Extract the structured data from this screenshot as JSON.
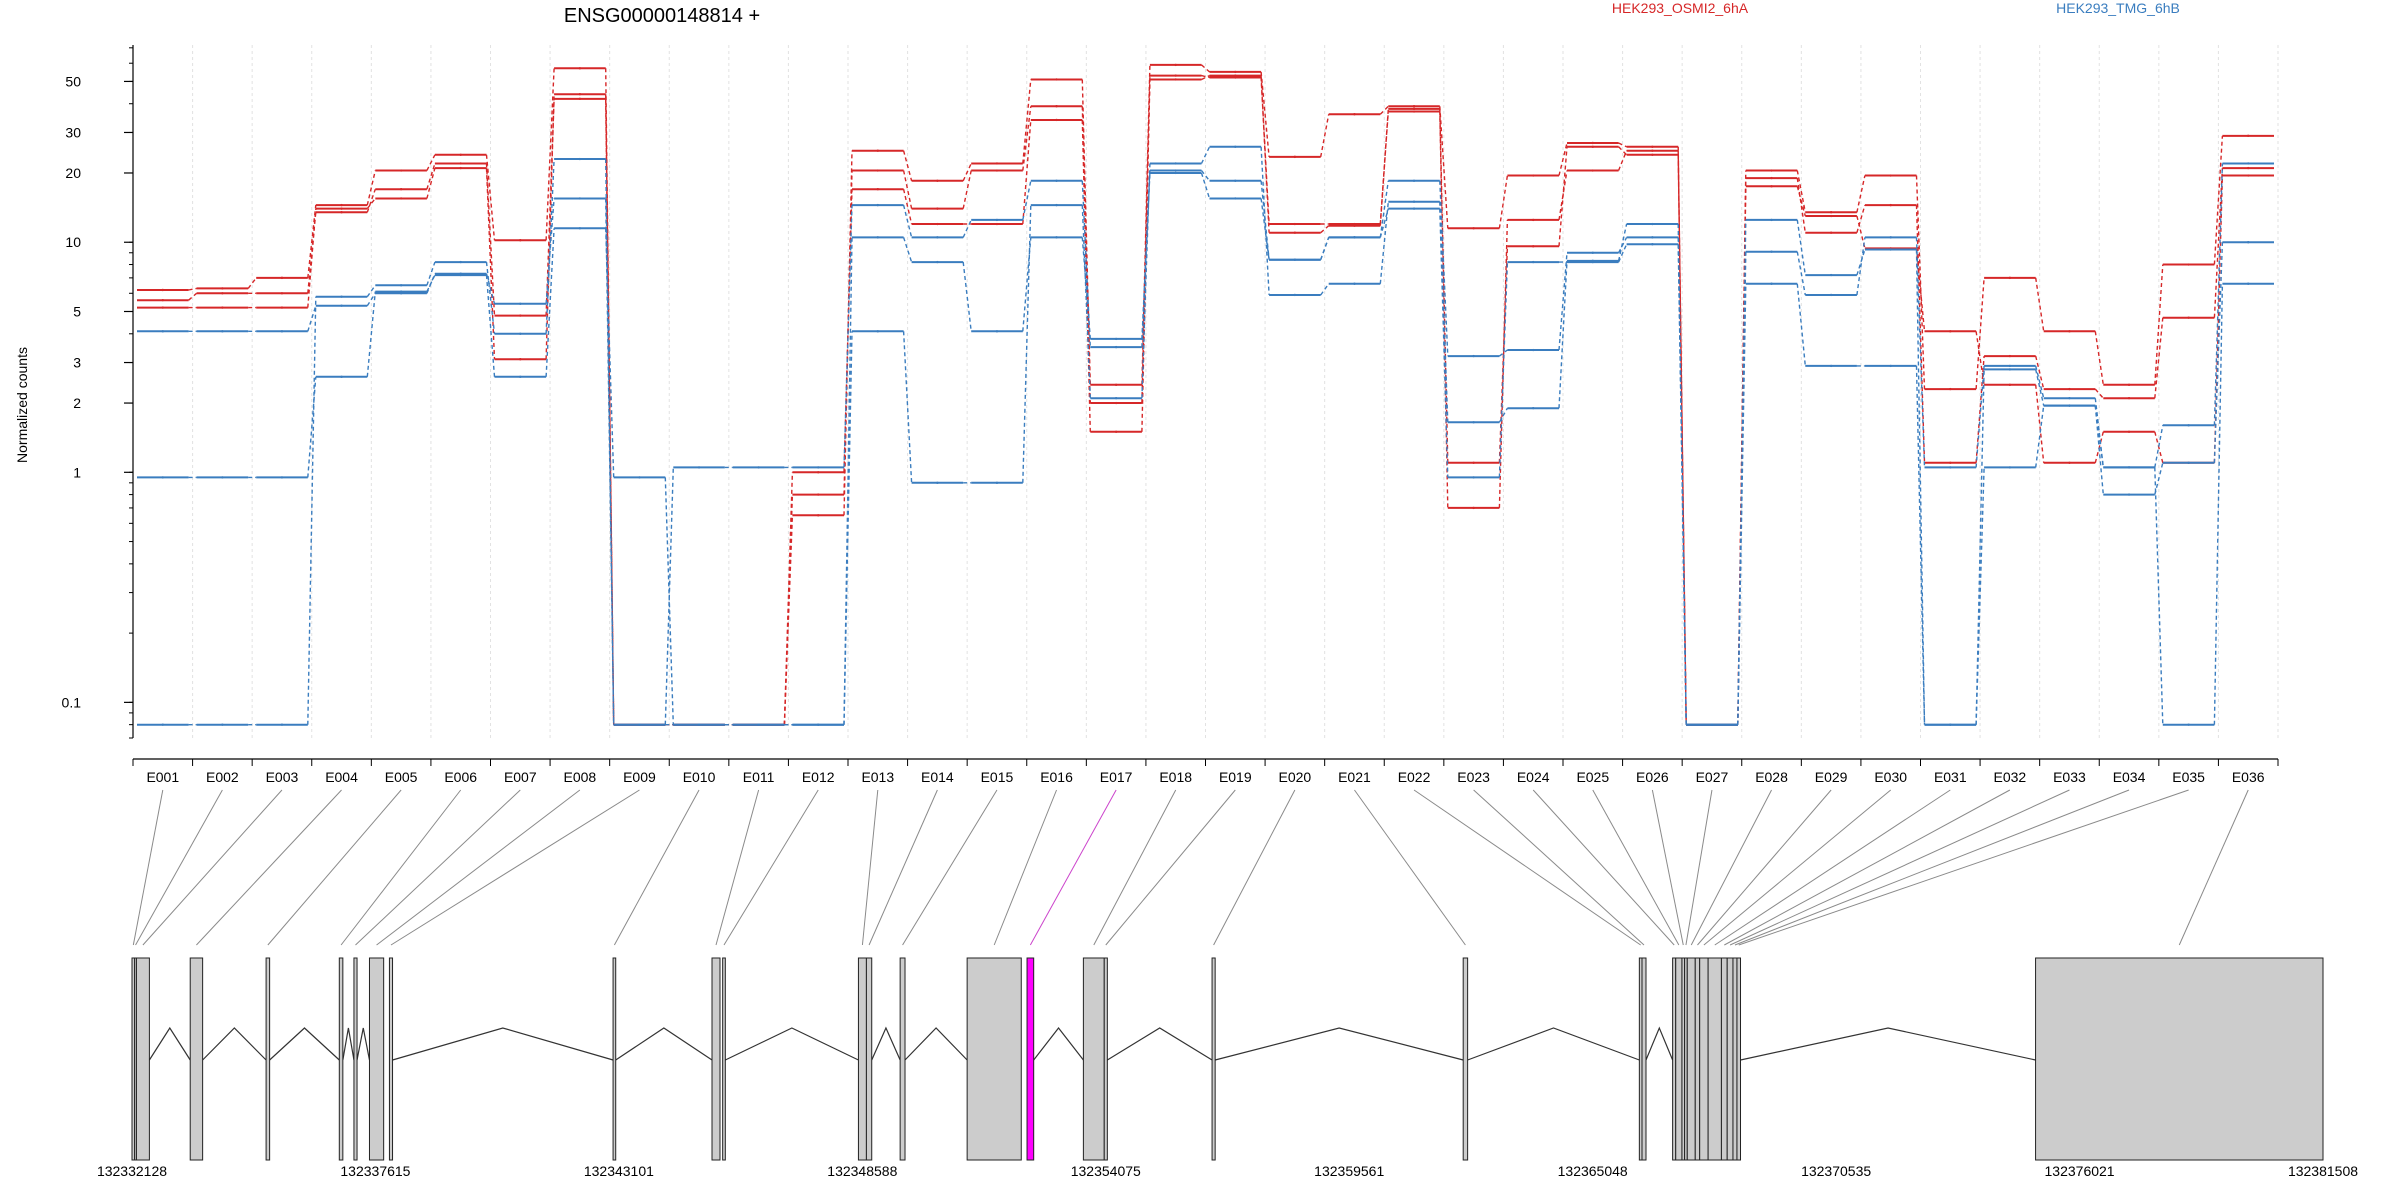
{
  "chart_data": {
    "type": "line",
    "title": "ENSG00000148814 +",
    "xlabel": "",
    "ylabel": "Normalized counts",
    "yscale": "log",
    "ylim": [
      0.07,
      72
    ],
    "y_ticks": [
      {
        "value": 0.1,
        "label": "0.1"
      },
      {
        "value": 1,
        "label": "1"
      },
      {
        "value": 2,
        "label": "2"
      },
      {
        "value": 3,
        "label": "3"
      },
      {
        "value": 5,
        "label": "5"
      },
      {
        "value": 10,
        "label": "10"
      },
      {
        "value": 20,
        "label": "20"
      },
      {
        "value": 30,
        "label": "30"
      },
      {
        "value": 50,
        "label": "50"
      }
    ],
    "grid": "vertical at each exon",
    "legend_position": "top-right",
    "categories": [
      "E001",
      "E002",
      "E003",
      "E004",
      "E005",
      "E006",
      "E007",
      "E008",
      "E009",
      "E010",
      "E011",
      "E012",
      "E013",
      "E014",
      "E015",
      "E016",
      "E017",
      "E018",
      "E019",
      "E020",
      "E021",
      "E022",
      "E023",
      "E024",
      "E025",
      "E026",
      "E027",
      "E028",
      "E029",
      "E030",
      "E031",
      "E032",
      "E033",
      "E034",
      "E035",
      "E036"
    ],
    "highlighted_category": "E017",
    "groups": [
      {
        "name": "HEK293_OSMI2_6hA",
        "color": "#d62728"
      },
      {
        "name": "HEK293_TMG_6hB",
        "color": "#3a7dbf"
      }
    ],
    "series": [
      {
        "group": 0,
        "values": [
          6.2,
          6.3,
          7.0,
          14.5,
          20.5,
          24.0,
          10.2,
          57.0,
          0.08,
          0.08,
          0.08,
          0.65,
          25.0,
          18.5,
          22.0,
          51.0,
          2.4,
          59.0,
          55.0,
          23.5,
          36.0,
          39.0,
          11.5,
          19.5,
          27.0,
          26.0,
          0.08,
          20.5,
          13.5,
          19.5,
          2.3,
          7.0,
          4.1,
          2.4,
          8.0,
          29.0
        ]
      },
      {
        "group": 0,
        "values": [
          5.6,
          6.0,
          6.0,
          13.5,
          17.0,
          22.0,
          4.8,
          42.0,
          0.08,
          0.08,
          0.08,
          0.8,
          20.5,
          14.0,
          20.5,
          39.0,
          2.0,
          53.0,
          52.0,
          12.0,
          12.0,
          37.0,
          0.7,
          12.5,
          20.5,
          25.0,
          0.08,
          19.0,
          11.0,
          14.5,
          1.1,
          3.2,
          2.3,
          2.1,
          4.7,
          21.0
        ]
      },
      {
        "group": 0,
        "values": [
          5.2,
          5.2,
          5.2,
          14.0,
          15.5,
          21.0,
          3.1,
          44.0,
          0.08,
          0.08,
          0.08,
          1.0,
          17.0,
          12.0,
          12.0,
          34.0,
          1.5,
          51.0,
          53.0,
          11.0,
          11.8,
          38.0,
          1.1,
          9.6,
          26.0,
          24.0,
          0.08,
          17.5,
          13.0,
          9.4,
          4.1,
          2.4,
          1.1,
          1.5,
          1.1,
          19.5
        ]
      },
      {
        "group": 1,
        "values": [
          4.1,
          4.1,
          4.1,
          5.3,
          6.0,
          7.3,
          5.4,
          15.5,
          0.08,
          1.05,
          1.05,
          1.05,
          14.5,
          10.5,
          12.5,
          18.5,
          3.5,
          20.5,
          18.5,
          8.4,
          10.5,
          18.5,
          3.2,
          3.4,
          9.0,
          10.5,
          0.08,
          9.1,
          5.9,
          10.5,
          1.05,
          2.9,
          2.1,
          1.05,
          1.6,
          22.0
        ]
      },
      {
        "group": 1,
        "values": [
          0.08,
          0.08,
          0.08,
          5.8,
          6.5,
          8.2,
          4.0,
          23.0,
          0.08,
          0.08,
          0.08,
          0.08,
          4.1,
          0.9,
          0.9,
          14.5,
          2.1,
          22.0,
          26.0,
          5.9,
          6.6,
          15.0,
          1.65,
          1.9,
          8.3,
          12.0,
          0.08,
          6.6,
          2.9,
          2.9,
          0.08,
          1.05,
          1.95,
          1.05,
          0.08,
          6.6
        ]
      },
      {
        "group": 1,
        "values": [
          0.95,
          0.95,
          0.95,
          2.6,
          6.1,
          7.2,
          2.6,
          11.5,
          0.95,
          0.08,
          0.08,
          0.08,
          10.5,
          8.2,
          4.1,
          10.5,
          3.8,
          20.0,
          15.5,
          8.4,
          10.5,
          14.0,
          0.95,
          8.2,
          8.2,
          9.8,
          0.08,
          12.5,
          7.2,
          9.3,
          0.08,
          2.8,
          1.95,
          0.8,
          1.1,
          10.0
        ]
      }
    ],
    "coordinate_labels": [
      "132332128",
      "132337615",
      "132343101",
      "132348588",
      "132354075",
      "132359561",
      "132365048",
      "132370535",
      "132376021",
      "132381508"
    ],
    "genomic_range": [
      132332128,
      132381508
    ],
    "exon_model": [
      {
        "id": "E001",
        "start": 132332128,
        "end": 132332188
      },
      {
        "id": "E002",
        "start": 132332188,
        "end": 132332228
      },
      {
        "id": "E003",
        "start": 132332228,
        "end": 132332520
      },
      {
        "id": "E004",
        "start": 132333440,
        "end": 132333720
      },
      {
        "id": "E005",
        "start": 132335150,
        "end": 132335230
      },
      {
        "id": "E006",
        "start": 132336800,
        "end": 132336880
      },
      {
        "id": "E007",
        "start": 132337130,
        "end": 132337200
      },
      {
        "id": "E008",
        "start": 132337480,
        "end": 132337800
      },
      {
        "id": "E009",
        "start": 132337930,
        "end": 132338000
      },
      {
        "id": "E010",
        "start": 132342970,
        "end": 132343030
      },
      {
        "id": "E011",
        "start": 132345200,
        "end": 132345380
      },
      {
        "id": "E012",
        "start": 132345440,
        "end": 132345500
      },
      {
        "id": "E013",
        "start": 132348500,
        "end": 132348680
      },
      {
        "id": "E014",
        "start": 132348680,
        "end": 132348800
      },
      {
        "id": "E015",
        "start": 132349440,
        "end": 132349550
      },
      {
        "id": "E016",
        "start": 132350950,
        "end": 132352170
      },
      {
        "id": "E017",
        "start": 132352300,
        "end": 132352450
      },
      {
        "id": "E018",
        "start": 132353570,
        "end": 132354040
      },
      {
        "id": "E019",
        "start": 132354040,
        "end": 132354110
      },
      {
        "id": "E020",
        "start": 132356470,
        "end": 132356540
      },
      {
        "id": "E021",
        "start": 132362130,
        "end": 132362230
      },
      {
        "id": "E022",
        "start": 132366100,
        "end": 132366160
      },
      {
        "id": "E023",
        "start": 132366160,
        "end": 132366250
      },
      {
        "id": "E024",
        "start": 132366850,
        "end": 132366920
      },
      {
        "id": "E025",
        "start": 132366920,
        "end": 132367060
      },
      {
        "id": "E026",
        "start": 132367060,
        "end": 132367120
      },
      {
        "id": "E027",
        "start": 132367120,
        "end": 132367180
      },
      {
        "id": "E028",
        "start": 132367180,
        "end": 132367360
      },
      {
        "id": "E029",
        "start": 132367360,
        "end": 132367460
      },
      {
        "id": "E030",
        "start": 132367460,
        "end": 132367650
      },
      {
        "id": "E031",
        "start": 132367650,
        "end": 132367950
      },
      {
        "id": "E032",
        "start": 132367950,
        "end": 132368080
      },
      {
        "id": "E033",
        "start": 132368080,
        "end": 132368210
      },
      {
        "id": "E034",
        "start": 132368210,
        "end": 132368300
      },
      {
        "id": "E035",
        "start": 132368300,
        "end": 132368380
      },
      {
        "id": "E036",
        "start": 132375030,
        "end": 132381508
      }
    ]
  }
}
